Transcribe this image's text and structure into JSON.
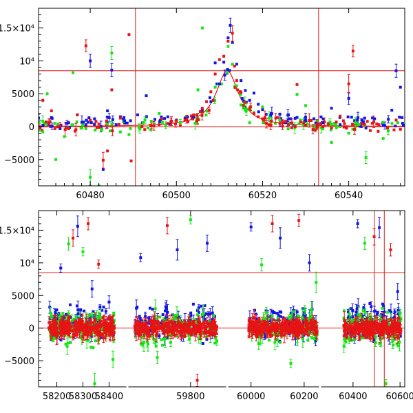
{
  "chart_data": [
    {
      "type": "scatter",
      "panel": "zoom",
      "xlim": [
        60468,
        60553
      ],
      "ylim": [
        -9000,
        18000
      ],
      "x_ticks": [
        60480,
        60500,
        60520,
        60540
      ],
      "x_tick_labels": [
        "60480",
        "60500",
        "60520",
        "60540"
      ],
      "y_ticks": [
        -5000,
        0,
        5000,
        10000,
        15000
      ],
      "y_tick_labels": [
        "−5000",
        "0",
        "5000",
        "10⁴",
        "1.5×10⁴"
      ],
      "xlabel": "",
      "ylabel": "",
      "grid": false,
      "colors": {
        "blue": "#1414e6",
        "green": "#14e614",
        "red": "#e61414",
        "frame": "#000000"
      },
      "reference_lines": {
        "horizontal": [
          8500,
          0
        ],
        "vertical": [
          60490.5,
          60533
        ]
      },
      "model_curve": {
        "color": "#e61414",
        "t0": 60511.8,
        "tE": 3.2,
        "peak": 8500
      },
      "series": [
        {
          "color_key": "blue",
          "points": [
            [
              60469,
              200
            ],
            [
              60471,
              1400
            ],
            [
              60473,
              -300
            ],
            [
              60475,
              600
            ],
            [
              60477,
              1800
            ],
            [
              60479,
              300
            ],
            [
              60480,
              10000
            ],
            [
              60481,
              1200
            ],
            [
              60483,
              -6500
            ],
            [
              60484,
              2400
            ],
            [
              60485,
              8600
            ],
            [
              60486,
              300
            ],
            [
              60487,
              1500
            ],
            [
              60488,
              900
            ],
            [
              60491,
              1800
            ],
            [
              60493,
              4700
            ],
            [
              60495,
              1100
            ],
            [
              60498,
              1500
            ],
            [
              60500,
              1000
            ],
            [
              60502,
              1300
            ],
            [
              60504,
              1500
            ],
            [
              60506,
              2600
            ],
            [
              60508,
              3800
            ],
            [
              60509,
              9700
            ],
            [
              60510,
              6500
            ],
            [
              60511,
              9800
            ],
            [
              60512,
              13500
            ],
            [
              60512.5,
              15400
            ],
            [
              60513,
              12800
            ],
            [
              60514,
              9500
            ],
            [
              60515,
              7000
            ],
            [
              60516,
              5500
            ],
            [
              60517,
              4000
            ],
            [
              60518,
              5100
            ],
            [
              60519,
              3400
            ],
            [
              60520,
              2600
            ],
            [
              60522,
              2000
            ],
            [
              60524,
              1900
            ],
            [
              60526,
              1800
            ],
            [
              60528,
              1400
            ],
            [
              60530,
              1000
            ],
            [
              60534,
              600
            ],
            [
              60536,
              2800
            ],
            [
              60538,
              300
            ],
            [
              60540,
              4300
            ],
            [
              60542,
              1000
            ],
            [
              60544,
              -200
            ],
            [
              60546,
              1200
            ],
            [
              60548,
              200
            ],
            [
              60550,
              2500
            ],
            [
              60551,
              8500
            ],
            [
              60552,
              6000
            ]
          ],
          "errors": [
            [
              60480,
              1000
            ],
            [
              60485,
              1000
            ],
            [
              60512.5,
              1100
            ],
            [
              60540,
              900
            ],
            [
              60551,
              1000
            ]
          ]
        },
        {
          "color_key": "green",
          "points": [
            [
              60469,
              -800
            ],
            [
              60470,
              5000
            ],
            [
              60472,
              -5000
            ],
            [
              60474,
              -1500
            ],
            [
              60476,
              8200
            ],
            [
              60479,
              -300
            ],
            [
              60480,
              -7700
            ],
            [
              60482,
              -9000
            ],
            [
              60484,
              400
            ],
            [
              60485,
              11200
            ],
            [
              60487,
              -800
            ],
            [
              60489,
              -1200
            ],
            [
              60496,
              2000
            ],
            [
              60505,
              5600
            ],
            [
              60506,
              15000
            ],
            [
              60509,
              6000
            ],
            [
              60512,
              12200
            ],
            [
              60513,
              9500
            ],
            [
              60514,
              6200
            ],
            [
              60515,
              3300
            ],
            [
              60516,
              2500
            ],
            [
              60517,
              600
            ],
            [
              60520,
              3000
            ],
            [
              60528,
              4900
            ],
            [
              60530,
              3200
            ],
            [
              60536,
              -2400
            ],
            [
              60540,
              -1000
            ],
            [
              60544,
              -4700
            ],
            [
              60548,
              -1800
            ]
          ],
          "errors": [
            [
              60480,
              1200
            ],
            [
              60485,
              1000
            ],
            [
              60544,
              900
            ]
          ]
        },
        {
          "color_key": "red",
          "points": [
            [
              60469,
              4000
            ],
            [
              60471,
              2400
            ],
            [
              60473,
              100
            ],
            [
              60475,
              -300
            ],
            [
              60477,
              1800
            ],
            [
              60479,
              12300
            ],
            [
              60480,
              1000
            ],
            [
              60482,
              400
            ],
            [
              60483,
              -5100
            ],
            [
              60484,
              -3700
            ],
            [
              60485,
              5600
            ],
            [
              60487,
              1300
            ],
            [
              60489,
              14000
            ],
            [
              60489.5,
              -5200
            ],
            [
              60492,
              0
            ],
            [
              60494,
              200
            ],
            [
              60496,
              300
            ],
            [
              60498,
              500
            ],
            [
              60500,
              900
            ],
            [
              60502,
              1000
            ],
            [
              60504,
              1800
            ],
            [
              60506,
              2800
            ],
            [
              60507,
              3800
            ],
            [
              60508,
              5300
            ],
            [
              60509,
              8000
            ],
            [
              60510,
              10200
            ],
            [
              60511,
              10700
            ],
            [
              60512,
              13000
            ],
            [
              60513,
              14200
            ],
            [
              60513.5,
              9200
            ],
            [
              60514,
              7000
            ],
            [
              60515,
              5200
            ],
            [
              60516,
              3700
            ],
            [
              60517,
              2800
            ],
            [
              60518,
              2000
            ],
            [
              60519,
              1500
            ],
            [
              60520,
              1200
            ],
            [
              60522,
              800
            ],
            [
              60524,
              500
            ],
            [
              60526,
              300
            ],
            [
              60528,
              6400
            ],
            [
              60530,
              200
            ],
            [
              60534,
              0
            ],
            [
              60536,
              -200
            ],
            [
              60538,
              1600
            ],
            [
              60540,
              6500
            ],
            [
              60541,
              11500
            ],
            [
              60543,
              400
            ],
            [
              60545,
              -600
            ],
            [
              60547,
              300
            ],
            [
              60549,
              -200
            ],
            [
              60551,
              1000
            ],
            [
              60552,
              -400
            ]
          ],
          "errors": [
            [
              60479,
              900
            ],
            [
              60483,
              1200
            ],
            [
              60513,
              1200
            ],
            [
              60540,
              1400
            ],
            [
              60541,
              900
            ]
          ]
        }
      ]
    },
    {
      "type": "scatter",
      "panel": "full",
      "segments": [
        [
          58130,
          58470
        ],
        [
          59610,
          59910
        ],
        [
          59910,
          60260
        ],
        [
          60260,
          60620
        ]
      ],
      "ylim": [
        -9000,
        18000
      ],
      "x_ticks": [
        58200,
        58300,
        58400,
        59800,
        60000,
        60200,
        60400,
        60600
      ],
      "x_tick_labels": [
        "58200",
        "58300",
        "58400",
        "59800",
        "60000",
        "60200",
        "60400",
        "60600"
      ],
      "y_ticks": [
        -5000,
        0,
        5000,
        10000,
        15000
      ],
      "y_tick_labels": [
        "−5000",
        "0",
        "5000",
        "10⁴",
        "1.5×10⁴"
      ],
      "xlabel": "",
      "ylabel": "",
      "grid": false,
      "colors": {
        "blue": "#1414e6",
        "green": "#14e614",
        "red": "#e61414",
        "frame": "#000000"
      },
      "reference_lines": {
        "horizontal": [
          8500,
          0
        ],
        "vertical": [
          60490.5,
          60533
        ]
      },
      "clusters": [
        {
          "segment": 0,
          "x_range": [
            58170,
            58420
          ],
          "spread": 2500,
          "outliers": [
            [
              58215,
              9200
            ],
            [
              58245,
              12900
            ],
            [
              58262,
              13800
            ],
            [
              58280,
              15600
            ],
            [
              58300,
              11700
            ],
            [
              58320,
              16000
            ],
            [
              58335,
              6000
            ],
            [
              58345,
              -8500
            ],
            [
              58360,
              9800
            ],
            [
              58400,
              4000
            ],
            [
              58415,
              -4800
            ]
          ]
        },
        {
          "segment": 1,
          "x_range": [
            59630,
            59880
          ],
          "spread": 2400,
          "outliers": [
            [
              59650,
              10800
            ],
            [
              59700,
              -4500
            ],
            [
              59730,
              15700
            ],
            [
              59760,
              12000
            ],
            [
              59800,
              16600
            ],
            [
              59820,
              -8000
            ],
            [
              59850,
              13000
            ]
          ]
        },
        {
          "segment": 2,
          "x_range": [
            59990,
            60250
          ],
          "spread": 2300,
          "outliers": [
            [
              60000,
              15500
            ],
            [
              60040,
              9700
            ],
            [
              60080,
              16000
            ],
            [
              60110,
              13800
            ],
            [
              60150,
              -5400
            ],
            [
              60180,
              16500
            ],
            [
              60220,
              10000
            ],
            [
              60245,
              7000
            ]
          ]
        },
        {
          "segment": 3,
          "x_range": [
            60360,
            60605
          ],
          "spread": 2400,
          "outliers": [
            [
              60420,
              16000
            ],
            [
              60450,
              13000
            ],
            [
              60490,
              14000
            ],
            [
              60512,
              15400
            ],
            [
              60540,
              -8500
            ],
            [
              60560,
              12000
            ],
            [
              60590,
              5600
            ]
          ]
        }
      ]
    }
  ]
}
